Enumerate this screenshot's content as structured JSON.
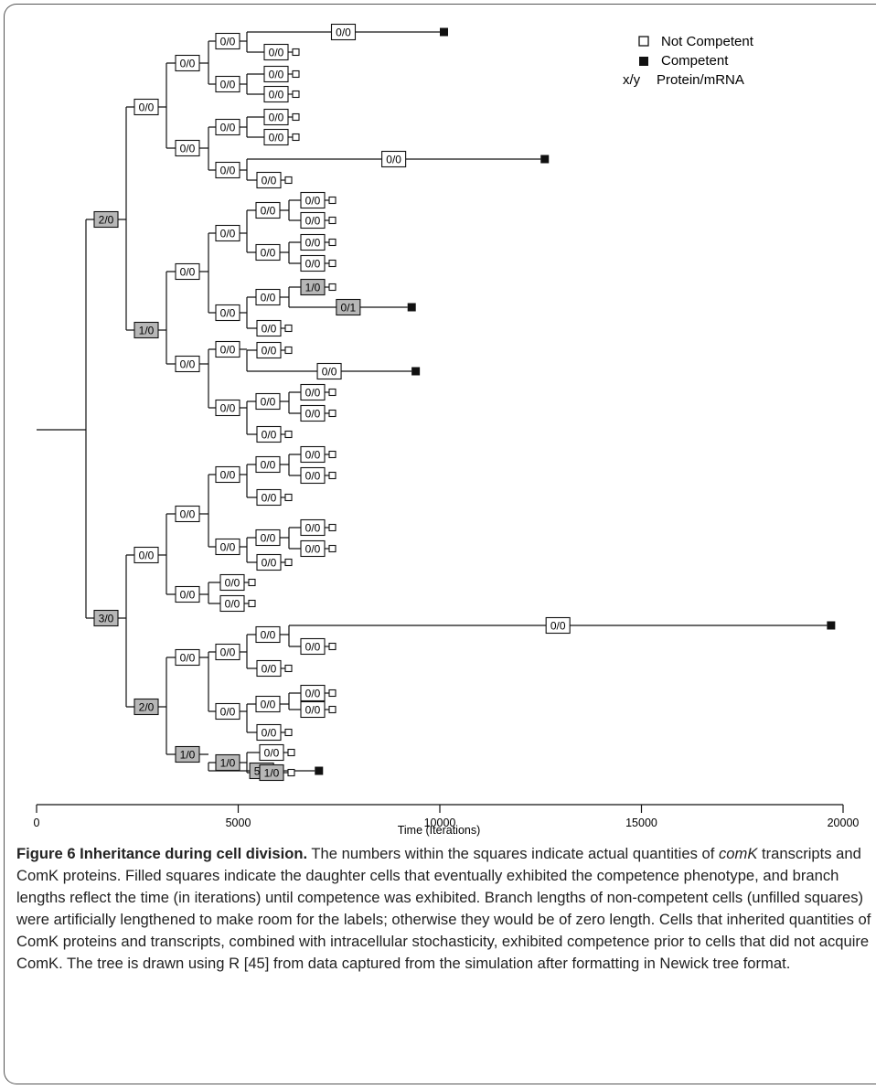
{
  "legend": {
    "not_competent_label": "Not Competent",
    "competent_label": "Competent",
    "format_key": "x/y",
    "format_label": "Protein/mRNA"
  },
  "axis": {
    "label": "Time (Iterations)",
    "ticks": [
      0,
      5000,
      10000,
      15000,
      20000
    ]
  },
  "nodes": [
    {
      "id": "n1",
      "label": "2/0",
      "parent": null,
      "inherited": true
    },
    {
      "id": "n2",
      "label": "3/0",
      "parent": null,
      "inherited": true
    },
    {
      "id": "n3",
      "label": "0/0",
      "parent": "n1",
      "inherited": false
    },
    {
      "id": "n4",
      "label": "1/0",
      "parent": "n1",
      "inherited": true
    },
    {
      "id": "n5",
      "label": "0/0",
      "parent": "n3",
      "inherited": false
    },
    {
      "id": "n6",
      "label": "0/0",
      "parent": "n3",
      "inherited": false
    },
    {
      "id": "n7",
      "label": "0/0",
      "parent": "n5",
      "inherited": false
    },
    {
      "id": "n8",
      "label": "0/0",
      "parent": "n5",
      "inherited": false
    },
    {
      "id": "n9",
      "label": "0/0",
      "parent": "n7",
      "inherited": false,
      "leaf": "competent",
      "time": 10000
    },
    {
      "id": "n10",
      "label": "0/0",
      "parent": "n7",
      "inherited": false,
      "leaf": "not_competent"
    },
    {
      "id": "n11",
      "label": "0/0",
      "parent": "n8",
      "inherited": false,
      "leaf": "not_competent"
    },
    {
      "id": "n12",
      "label": "0/0",
      "parent": "n8",
      "inherited": false,
      "leaf": "not_competent"
    },
    {
      "id": "n13",
      "label": "0/0",
      "parent": "n6",
      "inherited": false
    },
    {
      "id": "n14",
      "label": "0/0",
      "parent": "n6",
      "inherited": false
    },
    {
      "id": "n15",
      "label": "0/0",
      "parent": "n13",
      "inherited": false,
      "leaf": "not_competent"
    },
    {
      "id": "n16",
      "label": "0/0",
      "parent": "n13",
      "inherited": false,
      "leaf": "not_competent"
    },
    {
      "id": "n17",
      "label": "0/0",
      "parent": "n14",
      "inherited": false,
      "leaf": "competent",
      "time": 12500
    },
    {
      "id": "n18",
      "label": "0/0",
      "parent": "n14",
      "inherited": false,
      "leaf": "not_competent"
    },
    {
      "id": "n19",
      "label": "0/0",
      "parent": "n4",
      "inherited": false
    },
    {
      "id": "n20",
      "label": "0/0",
      "parent": "n4",
      "inherited": false
    },
    {
      "id": "n21",
      "label": "0/0",
      "parent": "n19",
      "inherited": false
    },
    {
      "id": "n22",
      "label": "0/0",
      "parent": "n19",
      "inherited": false
    },
    {
      "id": "n23",
      "label": "0/0",
      "parent": "n21",
      "inherited": false
    },
    {
      "id": "n24",
      "label": "0/0",
      "parent": "n21",
      "inherited": false
    },
    {
      "id": "n25",
      "label": "0/0",
      "parent": "n23",
      "inherited": false,
      "leaf": "not_competent"
    },
    {
      "id": "n26",
      "label": "0/0",
      "parent": "n23",
      "inherited": false,
      "leaf": "not_competent"
    },
    {
      "id": "n27",
      "label": "0/0",
      "parent": "n24",
      "inherited": false,
      "leaf": "not_competent"
    },
    {
      "id": "n28",
      "label": "0/0",
      "parent": "n24",
      "inherited": false,
      "leaf": "not_competent"
    },
    {
      "id": "n29",
      "label": "0/0",
      "parent": "n22",
      "inherited": false
    },
    {
      "id": "n30",
      "label": "0/0",
      "parent": "n22",
      "inherited": false,
      "leaf": "not_competent"
    },
    {
      "id": "n31",
      "label": "1/0",
      "parent": "n29",
      "inherited": true,
      "leaf": "not_competent"
    },
    {
      "id": "n32",
      "label": "0/1",
      "parent": "n29",
      "inherited": true,
      "leaf": "competent",
      "time": 9200
    },
    {
      "id": "n33",
      "label": "0/0",
      "parent": "n20",
      "inherited": false
    },
    {
      "id": "n34",
      "label": "0/0",
      "parent": "n20",
      "inherited": false
    },
    {
      "id": "n35",
      "label": "0/0",
      "parent": "n33",
      "inherited": false,
      "leaf": "not_competent"
    },
    {
      "id": "n36",
      "label": "0/0",
      "parent": "n33",
      "inherited": false,
      "leaf": "competent",
      "time": 9300
    },
    {
      "id": "n37",
      "label": "0/0",
      "parent": "n34",
      "inherited": false
    },
    {
      "id": "n38",
      "label": "0/0",
      "parent": "n34",
      "inherited": false,
      "leaf": "not_competent"
    },
    {
      "id": "n39",
      "label": "0/0",
      "parent": "n37",
      "inherited": false,
      "leaf": "not_competent"
    },
    {
      "id": "n40",
      "label": "0/0",
      "parent": "n37",
      "inherited": false,
      "leaf": "not_competent"
    },
    {
      "id": "n41",
      "label": "0/0",
      "parent": "n2",
      "inherited": false
    },
    {
      "id": "n42",
      "label": "2/0",
      "parent": "n2",
      "inherited": true
    },
    {
      "id": "n43",
      "label": "0/0",
      "parent": "n41",
      "inherited": false
    },
    {
      "id": "n44",
      "label": "0/0",
      "parent": "n41",
      "inherited": false
    },
    {
      "id": "n45",
      "label": "0/0",
      "parent": "n43",
      "inherited": false
    },
    {
      "id": "n46",
      "label": "0/0",
      "parent": "n43",
      "inherited": false
    },
    {
      "id": "n47",
      "label": "0/0",
      "parent": "n45",
      "inherited": false
    },
    {
      "id": "n48",
      "label": "0/0",
      "parent": "n45",
      "inherited": false,
      "leaf": "not_competent"
    },
    {
      "id": "n49",
      "label": "0/0",
      "parent": "n47",
      "inherited": false,
      "leaf": "not_competent"
    },
    {
      "id": "n50",
      "label": "0/0",
      "parent": "n47",
      "inherited": false,
      "leaf": "not_competent"
    },
    {
      "id": "n51",
      "label": "0/0",
      "parent": "n46",
      "inherited": false
    },
    {
      "id": "n52",
      "label": "0/0",
      "parent": "n46",
      "inherited": false,
      "leaf": "not_competent"
    },
    {
      "id": "n53",
      "label": "0/0",
      "parent": "n51",
      "inherited": false,
      "leaf": "not_competent"
    },
    {
      "id": "n54",
      "label": "0/0",
      "parent": "n51",
      "inherited": false,
      "leaf": "not_competent"
    },
    {
      "id": "n55",
      "label": "0/0",
      "parent": "n44",
      "inherited": false,
      "leaf": "not_competent"
    },
    {
      "id": "n56",
      "label": "0/0",
      "parent": "n44",
      "inherited": false,
      "leaf": "not_competent"
    },
    {
      "id": "n57",
      "label": "0/0",
      "parent": "n42",
      "inherited": false
    },
    {
      "id": "n58",
      "label": "1/0",
      "parent": "n42",
      "inherited": true
    },
    {
      "id": "n59",
      "label": "0/0",
      "parent": "n57",
      "inherited": false
    },
    {
      "id": "n60",
      "label": "0/0",
      "parent": "n57",
      "inherited": false
    },
    {
      "id": "n61",
      "label": "0/0",
      "parent": "n59",
      "inherited": false
    },
    {
      "id": "n62",
      "label": "0/0",
      "parent": "n59",
      "inherited": false,
      "leaf": "not_competent"
    },
    {
      "id": "n63",
      "label": "0/0",
      "parent": "n61",
      "inherited": false,
      "leaf": "competent",
      "time": 19600
    },
    {
      "id": "n64",
      "label": "0/0",
      "parent": "n61",
      "inherited": false,
      "leaf": "not_competent"
    },
    {
      "id": "n65",
      "label": "0/0",
      "parent": "n60",
      "inherited": false
    },
    {
      "id": "n66",
      "label": "0/0",
      "parent": "n60",
      "inherited": false,
      "leaf": "not_competent"
    },
    {
      "id": "n67",
      "label": "0/0",
      "parent": "n65",
      "inherited": false,
      "leaf": "not_competent"
    },
    {
      "id": "n68",
      "label": "0/0",
      "parent": "n65",
      "inherited": false,
      "leaf": "not_competent"
    },
    {
      "id": "n69",
      "label": "1/0",
      "parent": "n58",
      "inherited": true
    },
    {
      "id": "n70",
      "label": "5/1",
      "parent": "n58",
      "inherited": true,
      "leaf": "competent",
      "time": 6900
    },
    {
      "id": "n71",
      "label": "0/0",
      "parent": "n69",
      "inherited": false,
      "leaf": "not_competent"
    },
    {
      "id": "n72",
      "label": "1/0",
      "parent": "n69",
      "inherited": true,
      "leaf": "not_competent"
    }
  ],
  "caption": {
    "title": "Figure 6 Inheritance during cell division.",
    "sentence1_a": "The numbers within the squares indicate actual quantities of",
    "sentence1_gene": "comK",
    "sentence1_b": "transcripts and ComK proteins.",
    "rest": "Filled squares indicate the daughter cells that eventually exhibited the competence phenotype, and branch lengths reflect the time (in iterations) until competence was exhibited. Branch lengths of non-competent cells (unfilled squares) were artificially lengthened to make room for the labels; otherwise they would be of zero length. Cells that inherited quantities of ComK proteins and transcripts, combined with intracellular stochasticity, exhibited competence prior to cells that did not acquire ComK. The tree is drawn using R [45] from data captured from the simulation after formatting in Newick tree format."
  },
  "colors": {
    "inherited_fill": "#b7b7b7",
    "plain_fill": "#ffffff",
    "line": "#111111",
    "competent_marker": "#111111"
  }
}
